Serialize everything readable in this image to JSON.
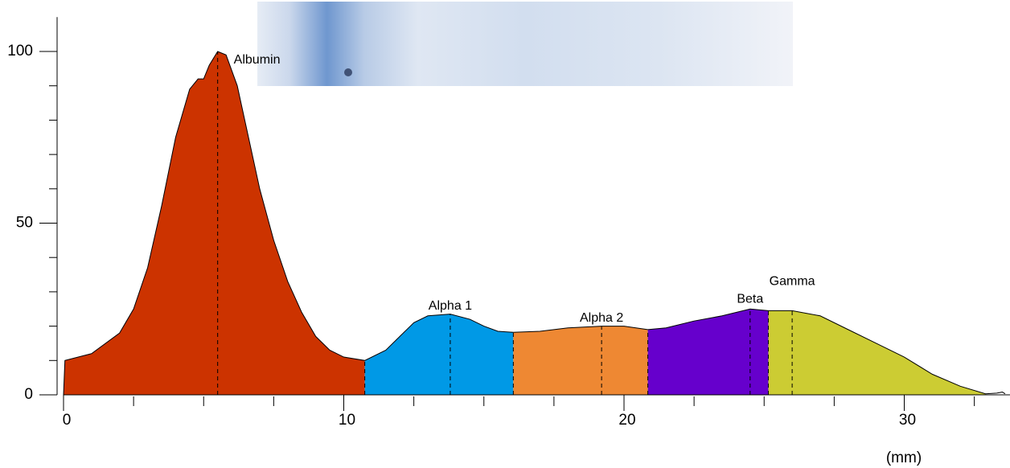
{
  "chart_data": {
    "type": "area",
    "x_label": "(mm)",
    "x": [
      0,
      0.05,
      1,
      2,
      2.5,
      3,
      3.5,
      4,
      4.5,
      4.8,
      5.0,
      5.2,
      5.5,
      5.8,
      6.2,
      6.6,
      7,
      7.5,
      8,
      8.5,
      9,
      9.5,
      10,
      10.75,
      11.5,
      12,
      12.5,
      13,
      13.8,
      14.5,
      15,
      15.5,
      16.05,
      17,
      18,
      19.2,
      20,
      20.85,
      21.5,
      22.5,
      23.5,
      24.5,
      25.15,
      26,
      27,
      28,
      29,
      30,
      31,
      32,
      32.9,
      33.3,
      33.5,
      33.6
    ],
    "y": [
      0,
      10,
      12,
      18,
      25,
      37,
      55,
      75,
      89,
      92,
      92,
      96,
      100,
      99,
      90,
      75,
      60,
      45,
      33,
      24,
      17,
      13,
      11,
      10,
      13,
      17,
      21,
      23,
      23.5,
      22,
      20,
      18.5,
      18.2,
      18.5,
      19.5,
      20,
      20,
      19,
      19.5,
      21.5,
      23,
      25,
      24.5,
      24.5,
      23,
      19,
      15,
      11,
      6,
      2.5,
      0.3,
      0.5,
      0.8,
      0.3
    ],
    "segments": [
      {
        "name": "Albumin",
        "color": "#cc3300",
        "start": 0,
        "end": 10.75,
        "peak": 5.5
      },
      {
        "name": "Alpha 1",
        "color": "#0099e6",
        "start": 10.75,
        "end": 16.05,
        "peak": 13.8
      },
      {
        "name": "Alpha 2",
        "color": "#ee8833",
        "start": 16.05,
        "end": 20.85,
        "peak": 19.2
      },
      {
        "name": "Beta",
        "color": "#6600cc",
        "start": 20.85,
        "end": 25.15,
        "peak": 24.5
      },
      {
        "name": "Gamma",
        "color": "#cccc33",
        "start": 25.15,
        "end": 32.9,
        "peak": 26
      }
    ],
    "xlim": [
      0,
      33.6
    ],
    "ylim": [
      0,
      110
    ],
    "xticks": [
      0,
      10,
      20,
      30
    ],
    "xminorticks": [
      2.5,
      5,
      7.5,
      12.5,
      15,
      17.5,
      22.5,
      25,
      27.5,
      32.5
    ],
    "yticks": [
      0,
      50,
      100
    ],
    "yminorticks": [
      10,
      20,
      30,
      40,
      60,
      70,
      80,
      90
    ]
  }
}
